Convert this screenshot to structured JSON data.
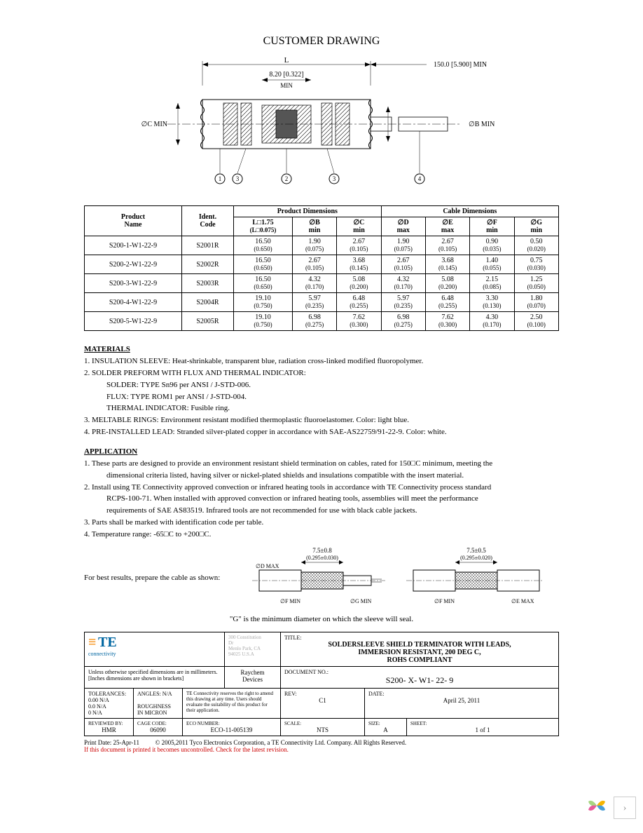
{
  "drawing": {
    "title": "CUSTOMER DRAWING",
    "dim_L": "L",
    "dim_lead": "150.0  [5.900]  MIN",
    "dim_mid": "8.20  [0.322]",
    "dim_mid_sub": "MIN",
    "dim_C": "∅C  MIN",
    "dim_B": "∅B  MIN",
    "callouts": [
      "1",
      "3",
      "2",
      "3",
      "4"
    ]
  },
  "table": {
    "headers": {
      "product_name": "Product\nName",
      "ident_code": "Ident.\nCode",
      "product_dims": "Product Dimensions",
      "cable_dims": "Cable Dimensions",
      "L": "L□1.75",
      "L_sub": "(L□0.075)",
      "B": "∅B\nmin",
      "C": "∅C\nmin",
      "D": "∅D\nmax",
      "E": "∅E\nmax",
      "F": "∅F\nmin",
      "G": "∅G\nmin"
    },
    "rows": [
      {
        "name": "S200-1-W1-22-9",
        "code": "S2001R",
        "L": "16.50",
        "Ls": "(0.650)",
        "B": "1.90",
        "Bs": "(0.075)",
        "C": "2.67",
        "Cs": "(0.105)",
        "D": "1.90",
        "Ds": "(0.075)",
        "E": "2.67",
        "Es": "(0.105)",
        "F": "0.90",
        "Fs": "(0.035)",
        "G": "0.50",
        "Gs": "(0.020)"
      },
      {
        "name": "S200-2-W1-22-9",
        "code": "S2002R",
        "L": "16.50",
        "Ls": "(0.650)",
        "B": "2.67",
        "Bs": "(0.105)",
        "C": "3.68",
        "Cs": "(0.145)",
        "D": "2.67",
        "Ds": "(0.105)",
        "E": "3.68",
        "Es": "(0.145)",
        "F": "1.40",
        "Fs": "(0.055)",
        "G": "0.75",
        "Gs": "(0.030)"
      },
      {
        "name": "S200-3-W1-22-9",
        "code": "S2003R",
        "L": "16.50",
        "Ls": "(0.650)",
        "B": "4.32",
        "Bs": "(0.170)",
        "C": "5.08",
        "Cs": "(0.200)",
        "D": "4.32",
        "Ds": "(0.170)",
        "E": "5.08",
        "Es": "(0.200)",
        "F": "2.15",
        "Fs": "(0.085)",
        "G": "1.25",
        "Gs": "(0.050)"
      },
      {
        "name": "S200-4-W1-22-9",
        "code": "S2004R",
        "L": "19.10",
        "Ls": "(0.750)",
        "B": "5.97",
        "Bs": "(0.235)",
        "C": "6.48",
        "Cs": "(0.255)",
        "D": "5.97",
        "Ds": "(0.235)",
        "E": "6.48",
        "Es": "(0.255)",
        "F": "3.30",
        "Fs": "(0.130)",
        "G": "1.80",
        "Gs": "(0.070)"
      },
      {
        "name": "S200-5-W1-22-9",
        "code": "S2005R",
        "L": "19.10",
        "Ls": "(0.750)",
        "B": "6.98",
        "Bs": "(0.275)",
        "C": "7.62",
        "Cs": "(0.300)",
        "D": "6.98",
        "Ds": "(0.275)",
        "E": "7.62",
        "Es": "(0.300)",
        "F": "4.30",
        "Fs": "(0.170)",
        "G": "2.50",
        "Gs": "(0.100)"
      }
    ]
  },
  "materials": {
    "title": "MATERIALS",
    "lines": [
      "1. INSULATION SLEEVE: Heat-shrinkable, transparent blue, radiation cross-linked modified fluoropolymer.",
      "2. SOLDER PREFORM WITH FLUX AND THERMAL INDICATOR:",
      "SOLDER:     TYPE Sn96 per ANSI / J-STD-006.",
      "FLUX:          TYPE ROM1 per ANSI / J-STD-004.",
      "THERMAL INDICATOR: Fusible ring.",
      "3. MELTABLE RINGS: Environment resistant modified thermoplastic fluoroelastomer. Color: light blue.",
      "4. PRE-INSTALLED LEAD: Stranded silver-plated copper in accordance with SAE-AS22759/91-22-9.  Color: white."
    ]
  },
  "application": {
    "title": "APPLICATION",
    "lines": [
      "1. These parts are designed to provide an environment resistant shield termination on cables, rated for 150□C minimum, meeting the",
      "dimensional criteria listed, having silver or nickel-plated shields and insulations compatible with the insert material.",
      "2. Install using TE Connectivity approved convection or infrared heating tools in accordance with TE Connectivity process standard",
      "RCPS-100-71. When installed with approved convection or infrared heating tools, assemblies will meet the performance",
      "requirements of SAE AS83519. Infrared tools are not recommended for use with black cable jackets.",
      "3. Parts shall be marked with identification code per table.",
      "4. Temperature range: -65□C to +200□C."
    ],
    "prep_note": "For best results, prepare the cable as shown:",
    "seal_note": "\"G\" is the minimum diameter on which the sleeve will seal.",
    "dim_labels": {
      "d_max": "∅D  MAX",
      "f_min": "∅F  MIN",
      "g_min": "∅G  MIN",
      "e_max": "∅E  MAX",
      "tol1": "7.5±0.8",
      "tol1s": "(0.295±0.030)",
      "tol2": "7.5±0.5",
      "tol2s": "(0.295±0.020)"
    }
  },
  "titleblock": {
    "te": "TE",
    "conn": "connectivity",
    "addr": [
      "300 Constitution",
      "Dr",
      "Menlo Park, CA",
      "94025  U.S.A"
    ],
    "raychem": "Raychem\nDevices",
    "title_label": "TITLE:",
    "title": "SOLDERSLEEVE SHIELD TERMINATOR WITH LEADS,\nIMMERSION RESISTANT, 200 DEG C,\nROHS COMPLIANT",
    "unless": "Unless otherwise specified dimensions are in millimeters.\n[Inches dimensions are shown in brackets]",
    "tol_label": "TOLERANCES:",
    "tol": "0.00 N/A\n0.0 N/A\n0 N/A",
    "angles": "ANGLES: N/A",
    "rough": "ROUGHNESS\nIN MICRON",
    "reserve": "TE Connectivity reserves the right to amend this drawing at any time.  Users should evaluate the suitability of this product for their application.",
    "docno_label": "DOCUMENT NO.:",
    "docno": "S200- X- W1- 22- 9",
    "rev_label": "REV:",
    "rev": "C1",
    "date_label": "DATE:",
    "date": "April 25, 2011",
    "reviewed_label": "REVIEWED BY:",
    "reviewed": "HMR",
    "cage_label": "CAGE CODE:",
    "cage": "06090",
    "eco_label": "ECO NUMBER:",
    "eco": "ECO-11-005139",
    "scale_label": "SCALE:",
    "scale": "NTS",
    "size_label": "SIZE:",
    "size": "A",
    "sheet_label": "SHEET:",
    "sheet": "1 of 1"
  },
  "footer": {
    "print": "Print Date: 25-Apr-11",
    "copy": "© 2005,2011  Tyco Electronics Corporation, a TE Connectivity Ltd. Company. All Rights Reserved.",
    "red": "If this document is printed it becomes uncontrolled.  Check for the latest revision."
  }
}
